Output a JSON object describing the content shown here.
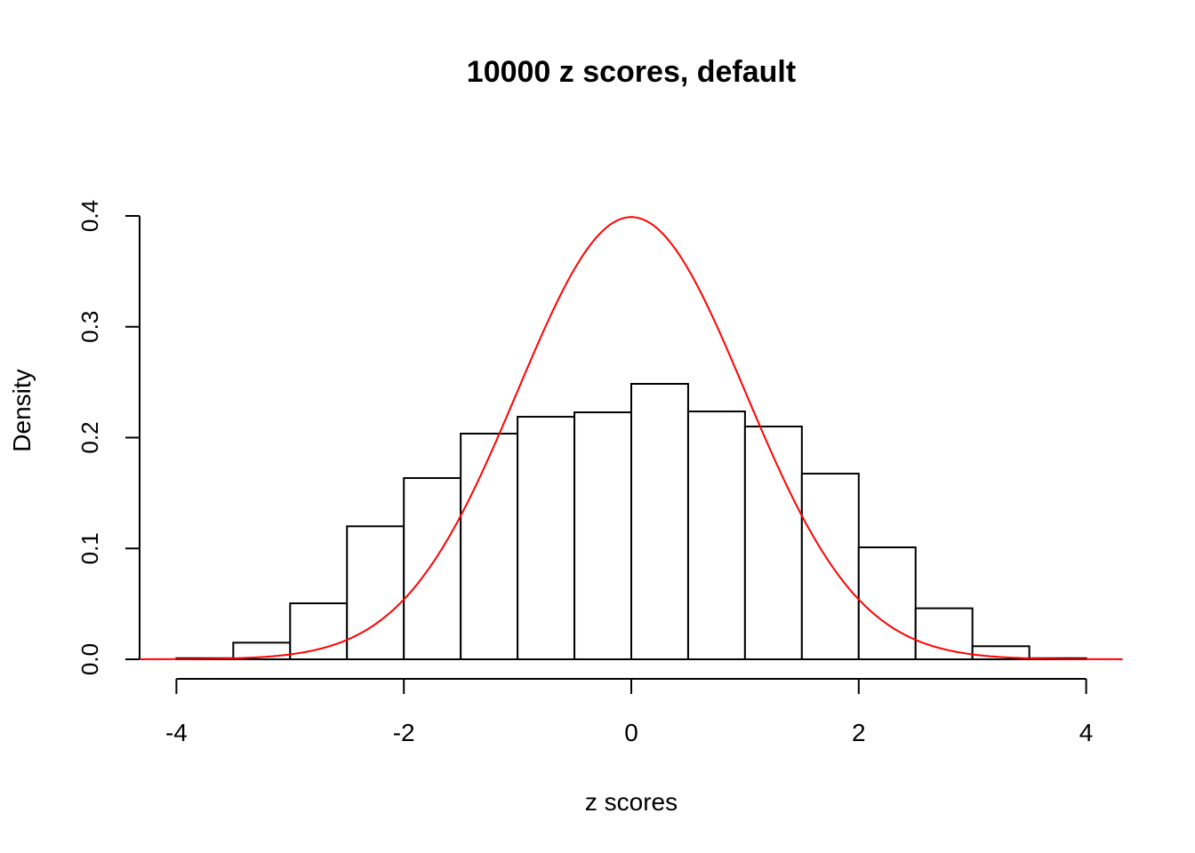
{
  "chart_data": {
    "type": "bar",
    "title": "10000 z scores, default",
    "xlabel": "z scores",
    "ylabel": "Density",
    "xlim": [
      -4.32,
      4.32
    ],
    "ylim": [
      0,
      0.4
    ],
    "xticks": [
      "-4",
      "-2",
      "0",
      "2",
      "4"
    ],
    "yticks": [
      "0.0",
      "0.1",
      "0.2",
      "0.3",
      "0.4"
    ],
    "grid": false,
    "bins": [
      {
        "from": -4.0,
        "to": -3.5,
        "density": 0.001
      },
      {
        "from": -3.5,
        "to": -3.0,
        "density": 0.015
      },
      {
        "from": -3.0,
        "to": -2.5,
        "density": 0.0505
      },
      {
        "from": -2.5,
        "to": -2.0,
        "density": 0.12
      },
      {
        "from": -2.0,
        "to": -1.5,
        "density": 0.1635
      },
      {
        "from": -1.5,
        "to": -1.0,
        "density": 0.2036
      },
      {
        "from": -1.0,
        "to": -0.5,
        "density": 0.2188
      },
      {
        "from": -0.5,
        "to": 0.0,
        "density": 0.2228
      },
      {
        "from": 0.0,
        "to": 0.5,
        "density": 0.2485
      },
      {
        "from": 0.5,
        "to": 1.0,
        "density": 0.2236
      },
      {
        "from": 1.0,
        "to": 1.5,
        "density": 0.21
      },
      {
        "from": 1.5,
        "to": 2.0,
        "density": 0.1675
      },
      {
        "from": 2.0,
        "to": 2.5,
        "density": 0.101
      },
      {
        "from": 2.5,
        "to": 3.0,
        "density": 0.046
      },
      {
        "from": 3.0,
        "to": 3.5,
        "density": 0.0118
      },
      {
        "from": 3.5,
        "to": 4.0,
        "density": 0.001
      }
    ],
    "overlay": {
      "type": "line",
      "function": "standard normal density",
      "mean": 0,
      "sd": 1,
      "color": "#ff0000",
      "range": [
        -4.32,
        4.32
      ]
    },
    "bar_fill": "#ffffff",
    "bar_stroke": "#000000"
  }
}
